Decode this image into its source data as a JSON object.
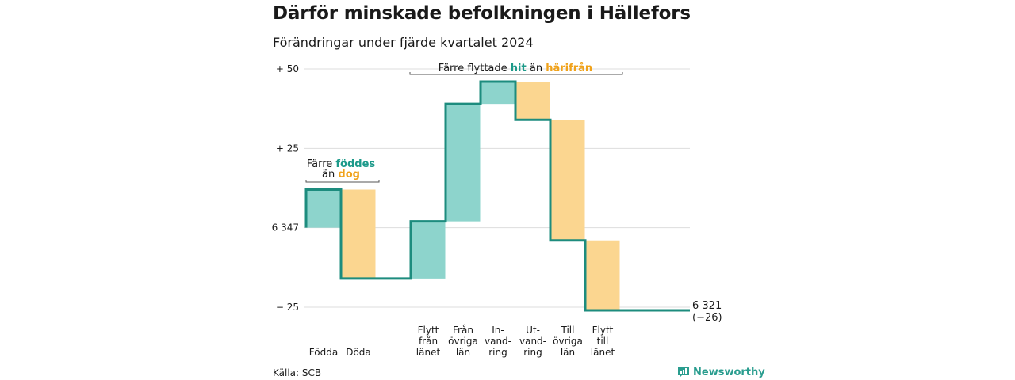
{
  "chart_data": {
    "type": "waterfall",
    "title": "Därför minskade befolkningen i Hällefors",
    "subtitle": "Förändringar under fjärde kvartalet 2024",
    "start_label": "6 347",
    "ylim": [
      -27,
      53
    ],
    "yticks": [
      {
        "value": 50,
        "label": "+ 50"
      },
      {
        "value": 25,
        "label": "+ 25"
      },
      {
        "value": 0,
        "label": "6 347"
      },
      {
        "value": -25,
        "label": "− 25"
      }
    ],
    "steps": [
      {
        "lines": [
          "Födda"
        ],
        "value": 12
      },
      {
        "lines": [
          "Döda"
        ],
        "value": -28
      },
      {
        "lines": [
          ""
        ],
        "value": 0
      },
      {
        "lines": [
          "Flytt",
          "från",
          "länet"
        ],
        "value": 18
      },
      {
        "lines": [
          "Från",
          "övriga",
          "län"
        ],
        "value": 37
      },
      {
        "lines": [
          "In-",
          "vand-",
          "ring"
        ],
        "value": 7
      },
      {
        "lines": [
          "Ut-",
          "vand-",
          "ring"
        ],
        "value": -12
      },
      {
        "lines": [
          "Till",
          "övriga",
          "län"
        ],
        "value": -38
      },
      {
        "lines": [
          "Flytt",
          "till",
          "länet"
        ],
        "value": -22
      }
    ],
    "end_label": "6 321",
    "end_change": "(−26)",
    "annotations": {
      "births": {
        "prefix": "Färre",
        "highlight1": "föddes",
        "middle": "än",
        "highlight2": "dog"
      },
      "migration": {
        "prefix": "Färre flyttade",
        "highlight1": "hit",
        "middle": "än",
        "highlight2": "härifrån"
      }
    },
    "colors": {
      "increase": "#8dd4cc",
      "decrease": "#fbd690",
      "line": "#1d8c7e",
      "grid": "#dddddd"
    }
  },
  "footer": {
    "source": "Källa: SCB",
    "brand": "Newsworthy",
    "brand_icon": "bar-chart-icon"
  }
}
